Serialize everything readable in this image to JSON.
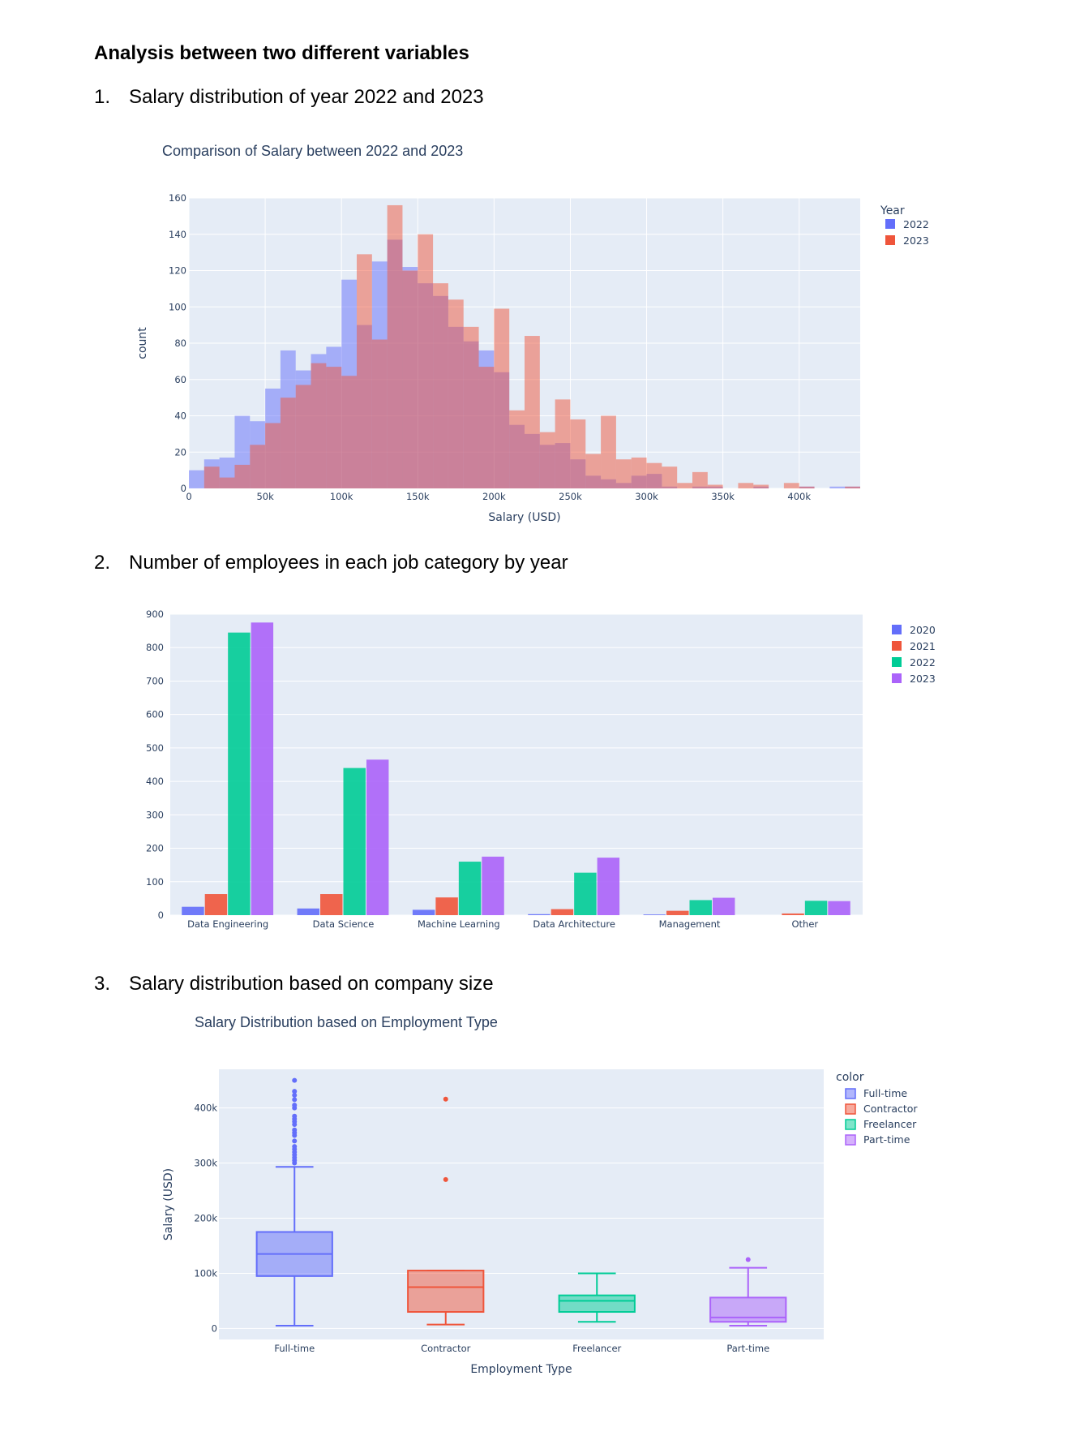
{
  "heading": "Analysis between two different variables",
  "sections": [
    {
      "num": "1.",
      "text": "Salary distribution of year 2022 and 2023"
    },
    {
      "num": "2.",
      "text": "Number of employees in each job category by year"
    },
    {
      "num": "3.",
      "text": "Salary distribution based on company size"
    }
  ],
  "colors": {
    "plot_bg": "#e5ecf6",
    "grid": "#ffffff",
    "blue": "#636efa",
    "red": "#ef553b",
    "green": "#00cc96",
    "purple": "#ab63fa"
  },
  "chart_data": [
    {
      "type": "histogram",
      "title": "Comparison of Salary between 2022 and 2023",
      "xlabel": "Salary (USD)",
      "ylabel": "count",
      "legend_title": "Year",
      "legend_position": "top-right",
      "xlim": [
        0,
        440000
      ],
      "ylim": [
        0,
        160
      ],
      "bin_width": 10000,
      "x_ticks": [
        0,
        50000,
        100000,
        150000,
        200000,
        250000,
        300000,
        350000,
        400000
      ],
      "x_tick_labels": [
        "0",
        "50k",
        "100k",
        "150k",
        "200k",
        "250k",
        "300k",
        "350k",
        "400k"
      ],
      "y_ticks": [
        0,
        20,
        40,
        60,
        80,
        100,
        120,
        140,
        160
      ],
      "y_tick_labels": [
        "0",
        "20",
        "40",
        "60",
        "80",
        "100",
        "120",
        "140",
        "160"
      ],
      "series": [
        {
          "name": "2022",
          "color": "#636efa",
          "values": [
            10,
            16,
            17,
            40,
            37,
            55,
            76,
            65,
            74,
            78,
            115,
            90,
            125,
            137,
            122,
            113,
            106,
            89,
            81,
            76,
            64,
            35,
            30,
            24,
            25,
            16,
            7,
            5,
            3,
            7,
            8,
            1,
            0,
            1,
            1,
            0,
            0,
            1,
            0,
            0,
            1,
            0,
            1,
            1
          ]
        },
        {
          "name": "2023",
          "color": "#ef553b",
          "values": [
            0,
            12,
            6,
            13,
            24,
            36,
            50,
            57,
            69,
            67,
            62,
            129,
            82,
            156,
            120,
            140,
            113,
            104,
            89,
            67,
            99,
            43,
            84,
            31,
            49,
            38,
            19,
            40,
            16,
            17,
            14,
            12,
            3,
            9,
            2,
            0,
            3,
            2,
            0,
            3,
            1,
            0,
            0,
            1,
            0
          ]
        }
      ]
    },
    {
      "type": "bar",
      "title": "",
      "legend_position": "top-right",
      "categories": [
        "Data Engineering",
        "Data Science",
        "Machine Learning",
        "Data Architecture",
        "Management",
        "Other"
      ],
      "ylim": [
        0,
        900
      ],
      "y_ticks": [
        0,
        100,
        200,
        300,
        400,
        500,
        600,
        700,
        800,
        900
      ],
      "series": [
        {
          "name": "2020",
          "color": "#636efa",
          "values": [
            25,
            20,
            16,
            3,
            2,
            0
          ]
        },
        {
          "name": "2021",
          "color": "#ef553b",
          "values": [
            63,
            63,
            53,
            18,
            13,
            5
          ]
        },
        {
          "name": "2022",
          "color": "#00cc96",
          "values": [
            845,
            440,
            160,
            127,
            45,
            43
          ]
        },
        {
          "name": "2023",
          "color": "#ab63fa",
          "values": [
            875,
            465,
            175,
            172,
            52,
            42
          ]
        }
      ]
    },
    {
      "type": "box",
      "title": "Salary Distribution based on Employment Type",
      "xlabel": "Employment Type",
      "ylabel": "Salary (USD)",
      "legend_title": "color",
      "legend_position": "top-right",
      "ylim": [
        -20000,
        470000
      ],
      "y_ticks": [
        0,
        100000,
        200000,
        300000,
        400000
      ],
      "y_tick_labels": [
        "0",
        "100k",
        "200k",
        "300k",
        "400k"
      ],
      "series": [
        {
          "name": "Full-time",
          "color": "#636efa",
          "min": 5000,
          "q1": 95000,
          "median": 135000,
          "q3": 175000,
          "max": 293000,
          "outliers": [
            300000,
            305000,
            310000,
            315000,
            320000,
            325000,
            330000,
            340000,
            350000,
            355000,
            360000,
            370000,
            375000,
            380000,
            385000,
            400000,
            405000,
            415000,
            423000,
            430000,
            450000
          ]
        },
        {
          "name": "Contractor",
          "color": "#ef553b",
          "min": 7000,
          "q1": 30000,
          "median": 75000,
          "q3": 105000,
          "max": 105000,
          "outliers": [
            270000,
            416000
          ]
        },
        {
          "name": "Freelancer",
          "color": "#00cc96",
          "min": 12000,
          "q1": 30000,
          "median": 50000,
          "q3": 60000,
          "max": 100000,
          "outliers": []
        },
        {
          "name": "Part-time",
          "color": "#ab63fa",
          "min": 5000,
          "q1": 12000,
          "median": 20000,
          "q3": 56000,
          "max": 110000,
          "outliers": [
            125000
          ]
        }
      ]
    }
  ]
}
